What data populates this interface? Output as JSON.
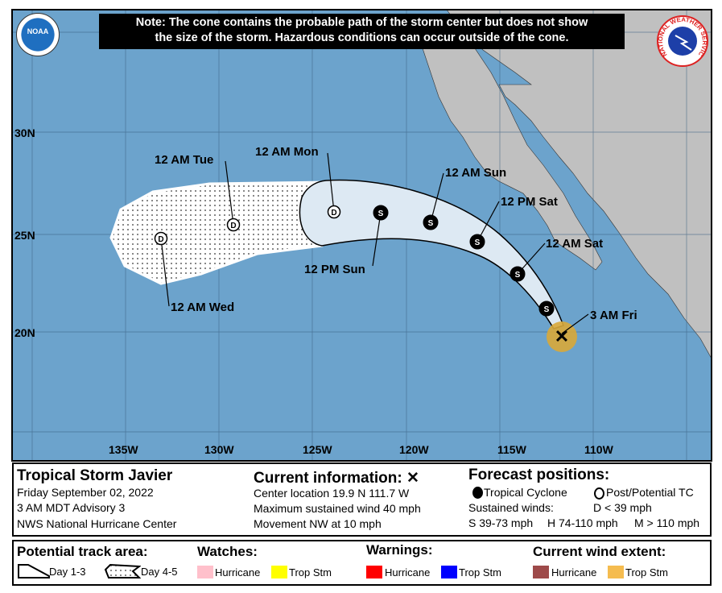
{
  "note": {
    "line1": "Note: The cone contains the probable path of the storm center but does not show",
    "line2": "the size of the storm. Hazardous conditions can occur outside of the cone."
  },
  "logos": {
    "left": "NOAA",
    "right": "NATIONAL WEATHER SERVICE"
  },
  "axes": {
    "lat": [
      "30N",
      "25N",
      "20N"
    ],
    "lon": [
      "135W",
      "130W",
      "125W",
      "120W",
      "115W",
      "110W"
    ]
  },
  "track_labels": {
    "current": "3 AM Fri",
    "p1": "12 AM Sat",
    "p2": "12 PM Sat",
    "p3": "12 AM Sun",
    "p4": "12 PM Sun",
    "p5": "12 AM Mon",
    "p6": "12 AM Tue",
    "p7": "12 AM Wed"
  },
  "markers": [
    "S",
    "S",
    "S",
    "S",
    "S",
    "D",
    "D",
    "D"
  ],
  "info": {
    "storm_name": "Tropical Storm Javier",
    "date": "Friday September 02, 2022",
    "advisory": "3 AM MDT Advisory 3",
    "center": "NWS National Hurricane Center",
    "current_title": "Current information: ✕",
    "location": "Center location 19.9 N 111.7 W",
    "wind": "Maximum sustained wind 40 mph",
    "movement": "Movement NW at 10 mph",
    "forecast_title": "Forecast positions:",
    "tc": "Tropical Cyclone",
    "ptc": "Post/Potential TC",
    "sustained": "Sustained winds:",
    "d": "D < 39 mph",
    "s": "S 39-73 mph",
    "h": "H 74-110 mph",
    "m": "M > 110 mph"
  },
  "legend": {
    "track_title": "Potential track area:",
    "day13": "Day 1-3",
    "day45": "Day 4-5",
    "watches_title": "Watches:",
    "warnings_title": "Warnings:",
    "wind_title": "Current wind extent:",
    "hurricane": "Hurricane",
    "tropstm": "Trop Stm",
    "colors": {
      "hurricane_watch": "#ffc0cb",
      "tropstm_watch": "#ffff00",
      "hurricane_warning": "#ff0000",
      "tropstm_warning": "#0000ff",
      "hurricane_wind": "#9e4a4a",
      "tropstm_wind": "#f5bc4f"
    }
  }
}
